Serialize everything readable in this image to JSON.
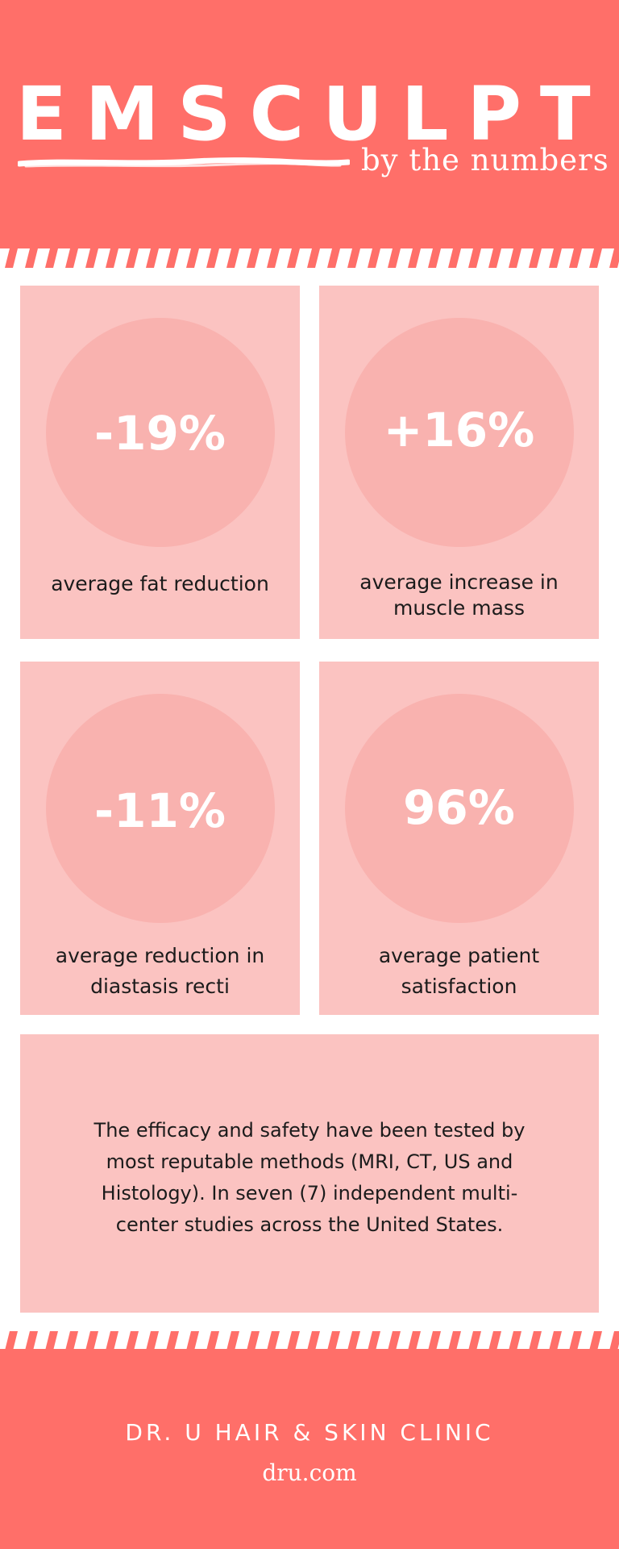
{
  "header": {
    "title": "EMSCULPT",
    "subtitle": "by the numbers"
  },
  "stats": [
    {
      "value": "-19%",
      "label_lines": [
        "average fat reduction"
      ]
    },
    {
      "value": "+16%",
      "label_lines": [
        "average increase in",
        "muscle mass"
      ]
    },
    {
      "value": "-11%",
      "label_lines": [
        "average reduction in",
        "diastasis recti"
      ]
    },
    {
      "value": "96%",
      "label_lines": [
        "average patient",
        "satisfaction"
      ]
    }
  ],
  "notes": {
    "lines": [
      "The efficacy and safety have been tested by",
      "most reputable methods (MRI, CT, US and",
      "Histology). In seven (7) independent multi-",
      "center studies across the United States."
    ]
  },
  "footer": {
    "clinic": "DR. U HAIR & SKIN CLINIC",
    "website": "dru.com"
  },
  "colors": {
    "coral": "#ff6f69",
    "card": "#fbc3c1",
    "circle": "#f9b2af"
  }
}
